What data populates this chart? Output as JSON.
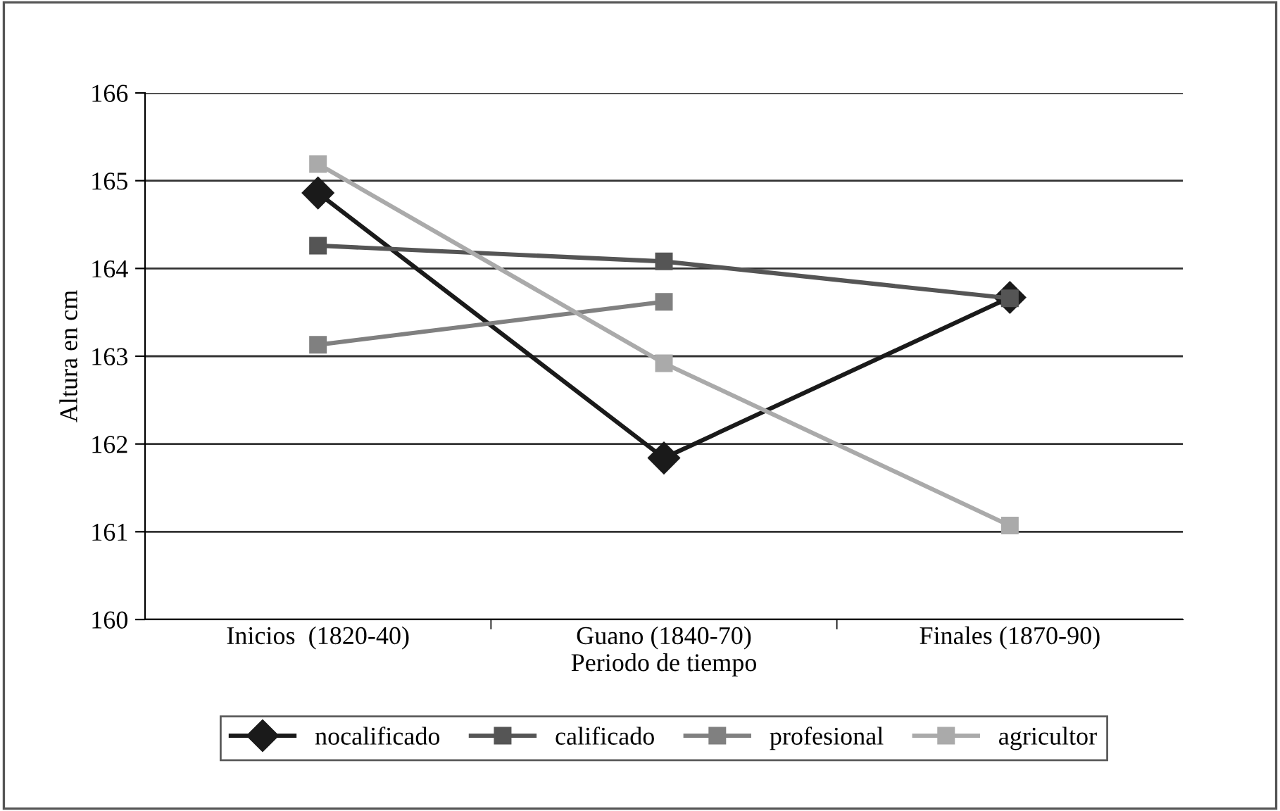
{
  "chart_data": {
    "type": "line",
    "xlabel": "Periodo de tiempo",
    "ylabel": "Altura en cm",
    "categories": [
      "Inicios  (1820-40)",
      "Guano (1840-70)",
      "Finales (1870-90)"
    ],
    "series": [
      {
        "name": "nocalificado",
        "color": "#1a1a1a",
        "marker": "diamond",
        "values": [
          164.86,
          161.84,
          163.67
        ]
      },
      {
        "name": "calificado",
        "color": "#555555",
        "marker": "square",
        "values": [
          164.26,
          164.08,
          163.66
        ]
      },
      {
        "name": "profesional",
        "color": "#808080",
        "marker": "square",
        "values": [
          163.13,
          163.62,
          null
        ]
      },
      {
        "name": "agricultor",
        "color": "#aaaaaa",
        "marker": "square",
        "values": [
          165.19,
          162.92,
          161.07
        ]
      }
    ],
    "ylim": [
      160,
      166
    ],
    "yticks": [
      160,
      161,
      162,
      163,
      164,
      165,
      166
    ],
    "grid": "y",
    "legend": "bottom",
    "line_style": "solid"
  }
}
